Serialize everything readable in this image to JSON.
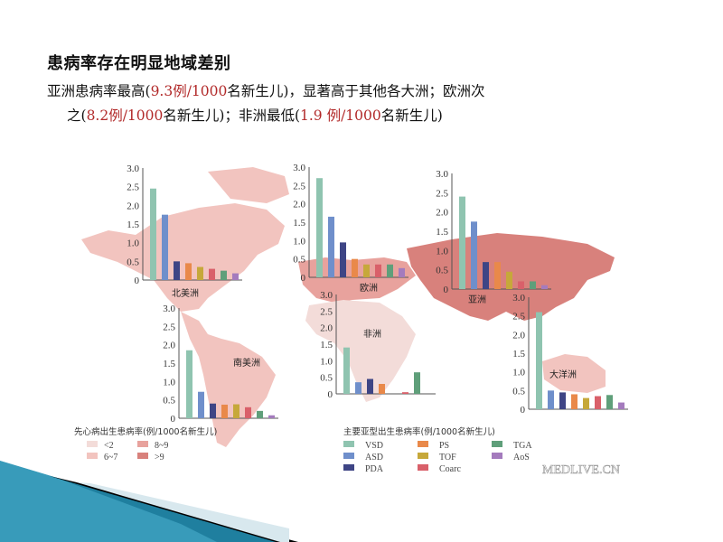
{
  "slide": {
    "title": "患病率存在明显地域差别",
    "line1": [
      {
        "t": "亚洲患病率最高(",
        "c": "black"
      },
      {
        "t": "9.3例/1000",
        "c": "red"
      },
      {
        "t": "名新生儿)，显著高于其他各大洲；欧洲次",
        "c": "black"
      }
    ],
    "line2": [
      {
        "t": "之(",
        "c": "black"
      },
      {
        "t": "8.2例/1000",
        "c": "red"
      },
      {
        "t": "名新生儿)；非洲最低(",
        "c": "black"
      },
      {
        "t": "1.9 例/1000",
        "c": "red"
      },
      {
        "t": "名新生儿)",
        "c": "black"
      }
    ]
  },
  "colors": {
    "VSD": "#8fc4b0",
    "ASD": "#6f8fcb",
    "PDA": "#3e4585",
    "PS": "#e9894a",
    "TOF": "#c6a83a",
    "Coarc": "#d9606a",
    "TGA": "#5f9f7a",
    "AoS": "#a47bbd",
    "map_lt2": "#f3dcd9",
    "map_6_7": "#f2c4bf",
    "map_8_9": "#e8a29d",
    "map_gt9": "#d8817c"
  },
  "chart_data": {
    "type": "bar",
    "title": "先心病出生患病率 by continent (例/1000名新生儿)",
    "categories": [
      "VSD",
      "ASD",
      "PDA",
      "PS",
      "TOF",
      "Coarc",
      "TGA",
      "AoS"
    ],
    "ylim": [
      0,
      3.0
    ],
    "yticks": [
      "0",
      "0.5",
      "1.0",
      "1.5",
      "2.0",
      "2.5",
      "3.0"
    ],
    "panels": [
      {
        "name": "北美洲",
        "values": [
          2.45,
          1.75,
          0.5,
          0.45,
          0.35,
          0.3,
          0.25,
          0.18
        ]
      },
      {
        "name": "欧洲",
        "values": [
          2.7,
          1.65,
          0.95,
          0.5,
          0.35,
          0.35,
          0.35,
          0.25
        ]
      },
      {
        "name": "亚洲",
        "values": [
          2.4,
          1.75,
          0.7,
          0.7,
          0.45,
          0.2,
          0.2,
          0.1
        ]
      },
      {
        "name": "南美洲",
        "values": [
          1.85,
          0.72,
          0.4,
          0.37,
          0.38,
          0.3,
          0.2,
          0.08
        ]
      },
      {
        "name": "非洲",
        "values": [
          1.4,
          0.35,
          0.45,
          0.3,
          0,
          0.05,
          0.65,
          0
        ]
      },
      {
        "name": "大洋洲",
        "values": [
          2.6,
          0.5,
          0.45,
          0.4,
          0.3,
          0.35,
          0.38,
          0.18
        ]
      }
    ],
    "map_legend": {
      "title": "先心病出生患病率(例/1000名新生儿)",
      "items": [
        "<2",
        "8~9",
        "6~7",
        ">9"
      ]
    },
    "subtype_legend": {
      "title": "主要亚型出生患病率(例/1000名新生儿)",
      "items": [
        "VSD",
        "PS",
        "TGA",
        "ASD",
        "TOF",
        "AoS",
        "PDA",
        "Coarc"
      ]
    }
  },
  "watermark": "MEDLIVE.CN"
}
